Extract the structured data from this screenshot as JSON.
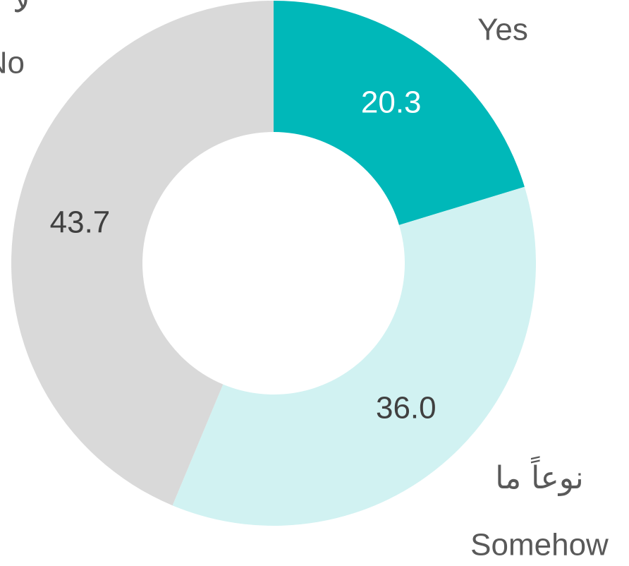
{
  "chart_data": {
    "type": "donut",
    "categories": [
      "Yes",
      "Somehow",
      "No"
    ],
    "arabic_labels": [
      null,
      "نوعاً ما",
      "لا"
    ],
    "values": [
      20.3,
      36.0,
      43.7
    ],
    "value_labels": [
      "20.3",
      "36.0",
      "43.7"
    ],
    "colors": [
      "#00b8b9",
      "#d1f2f2",
      "#d9d9d9"
    ]
  }
}
